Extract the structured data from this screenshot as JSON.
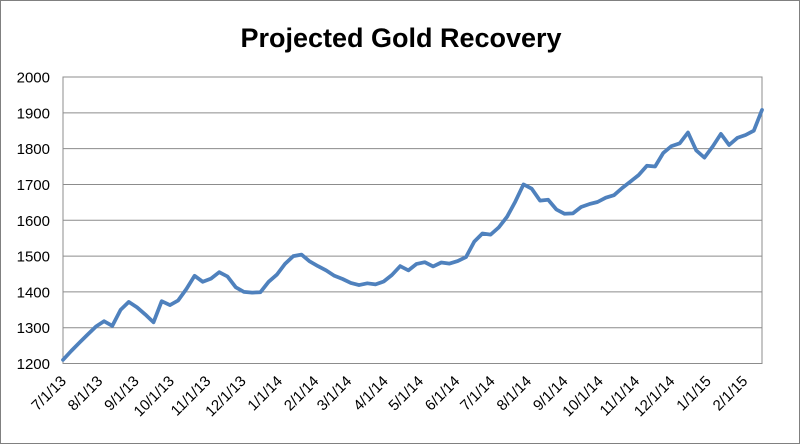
{
  "chart_data": {
    "type": "line",
    "title": "Projected Gold Recovery",
    "x_start_date": "7/1/13",
    "x_interval_days": 7,
    "x_tick_labels": [
      "7/1/13",
      "8/1/13",
      "9/1/13",
      "10/1/13",
      "11/1/13",
      "12/1/13",
      "1/1/14",
      "2/1/14",
      "3/1/14",
      "4/1/14",
      "5/1/14",
      "6/1/14",
      "7/1/14",
      "8/1/14",
      "9/1/14",
      "10/1/14",
      "11/1/14",
      "12/1/14",
      "1/1/15",
      "2/1/15"
    ],
    "y_ticks": [
      2000,
      1900,
      1800,
      1700,
      1600,
      1500,
      1400,
      1300,
      1200
    ],
    "ylim": [
      1200,
      2000
    ],
    "grid": "horizontal-major",
    "legend_position": "none",
    "line_color": "#4F81BD",
    "gridline_color": "#8C8C8C",
    "border_color": "#808080",
    "text_color": "#000000",
    "values": [
      1210,
      1235,
      1258,
      1281,
      1303,
      1318,
      1305,
      1350,
      1372,
      1357,
      1337,
      1315,
      1374,
      1363,
      1376,
      1408,
      1445,
      1428,
      1437,
      1455,
      1443,
      1413,
      1400,
      1398,
      1399,
      1428,
      1448,
      1478,
      1500,
      1504,
      1485,
      1472,
      1460,
      1445,
      1436,
      1425,
      1419,
      1424,
      1421,
      1429,
      1447,
      1472,
      1460,
      1478,
      1483,
      1471,
      1482,
      1479,
      1486,
      1497,
      1540,
      1563,
      1560,
      1580,
      1610,
      1652,
      1700,
      1688,
      1655,
      1657,
      1630,
      1618,
      1619,
      1637,
      1645,
      1651,
      1663,
      1670,
      1690,
      1708,
      1726,
      1752,
      1750,
      1788,
      1807,
      1815,
      1845,
      1795,
      1775,
      1806,
      1841,
      1810,
      1830,
      1838,
      1850,
      1908
    ]
  }
}
